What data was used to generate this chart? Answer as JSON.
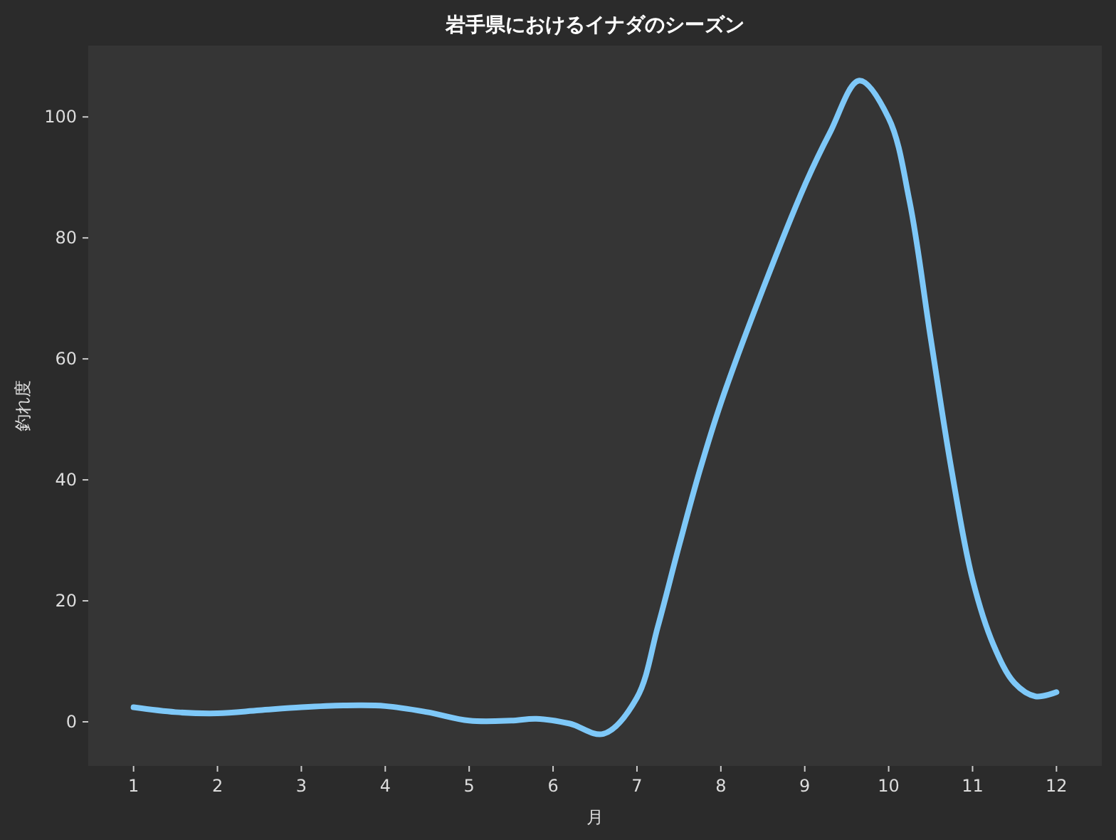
{
  "chart_data": {
    "type": "line",
    "title": "岩手県におけるイナダのシーズン",
    "xlabel": "月",
    "ylabel": "釣れ度",
    "series": [
      {
        "color": "#7ec8f8",
        "x": [
          1,
          1.5,
          2,
          2.5,
          3,
          3.5,
          4,
          4.5,
          5,
          5.5,
          5.8,
          6.2,
          6.6,
          7,
          7.25,
          7.5,
          7.75,
          8,
          8.5,
          9,
          9.3,
          9.65,
          10,
          10.25,
          10.5,
          10.75,
          11,
          11.25,
          11.5,
          11.75,
          12
        ],
        "values": [
          2.4,
          1.6,
          1.4,
          1.9,
          2.4,
          2.7,
          2.6,
          1.6,
          0.2,
          0.2,
          0.5,
          -0.3,
          -2,
          4,
          15.8,
          29,
          41.6,
          52.7,
          71.5,
          88.7,
          97.4,
          106,
          99.8,
          86,
          63.5,
          41.6,
          23.5,
          12.7,
          6.4,
          4.2,
          4.9
        ]
      }
    ],
    "xlim": [
      0.46,
      12.54
    ],
    "ylim": [
      -7.3,
      111.8
    ],
    "xticks": [
      1,
      2,
      3,
      4,
      5,
      6,
      7,
      8,
      9,
      10,
      11,
      12
    ],
    "yticks": [
      0,
      20,
      40,
      60,
      80,
      100
    ],
    "grid": false,
    "marker": "none",
    "line_style": "solid"
  }
}
